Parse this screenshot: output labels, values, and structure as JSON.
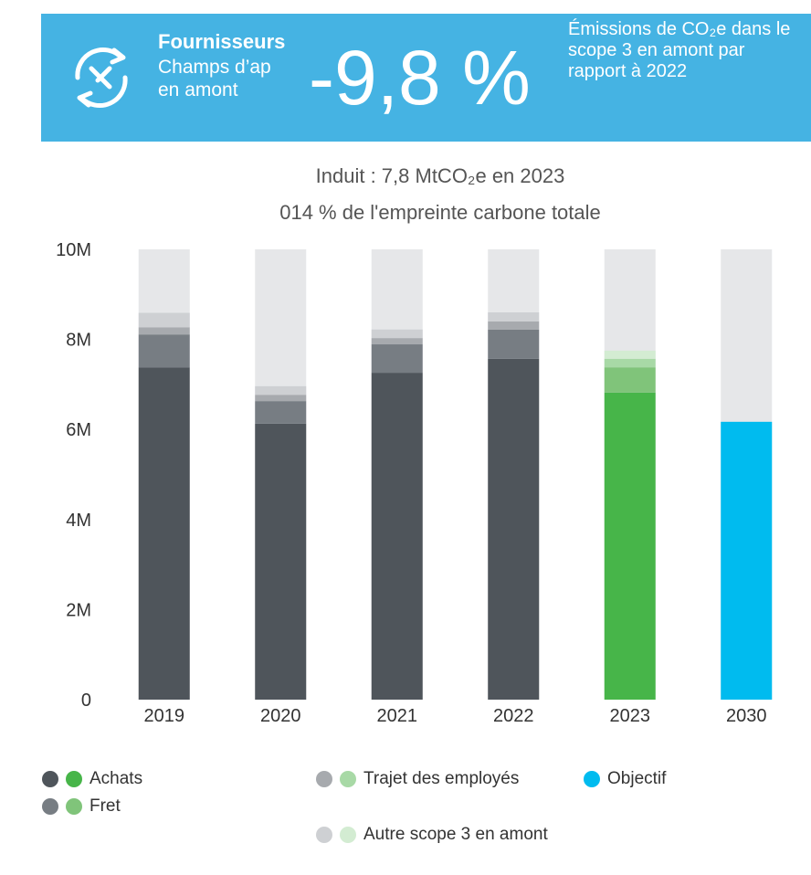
{
  "banner": {
    "title": "Fournisseurs",
    "subtitle_lines": [
      "Champs d’ap",
      "en amont"
    ],
    "figure": "-9,8 %",
    "description": "Émissions de CO₂e dans le scope 3 en amont par rapport à 2022"
  },
  "chart_data": {
    "type": "stacked_bar",
    "title": "Induit : 7,8 MtCO₂e en 2023",
    "subtitle": "014 % de l'empreinte carbone totale",
    "categories": [
      "2019",
      "2020",
      "2021",
      "2022",
      "2023",
      "2030"
    ],
    "highlight_index": 4,
    "series": [
      {
        "name": "Achats",
        "color": "#4f555b",
        "highlight_color": "#47b549",
        "values": [
          7380000,
          6130000,
          7260000,
          7570000,
          6820000,
          null
        ]
      },
      {
        "name": "Fret",
        "color": "#777d83",
        "highlight_color": "#80c47a",
        "values": [
          730000,
          500000,
          630000,
          650000,
          560000,
          null
        ]
      },
      {
        "name": "Trajet des employés",
        "color": "#a7aaae",
        "highlight_color": "#a8d9a6",
        "values": [
          160000,
          140000,
          140000,
          180000,
          190000,
          null
        ]
      },
      {
        "name": "Autre scope 3 en amont",
        "color": "#ced0d3",
        "highlight_color": "#d3ecd2",
        "values": [
          320000,
          190000,
          190000,
          200000,
          180000,
          null
        ]
      },
      {
        "name": "Objectif",
        "color": "#00bbef",
        "values": [
          null,
          null,
          null,
          null,
          null,
          6170000
        ]
      }
    ],
    "ylim": [
      0,
      10000000
    ],
    "yticks": [
      0,
      {
        "value": 2000000,
        "label": "2M"
      },
      {
        "value": 4000000,
        "label": "4M"
      },
      {
        "value": 6000000,
        "label": "6M"
      },
      {
        "value": 8000000,
        "label": "8M"
      },
      {
        "value": 10000000,
        "label": "10M"
      }
    ]
  }
}
